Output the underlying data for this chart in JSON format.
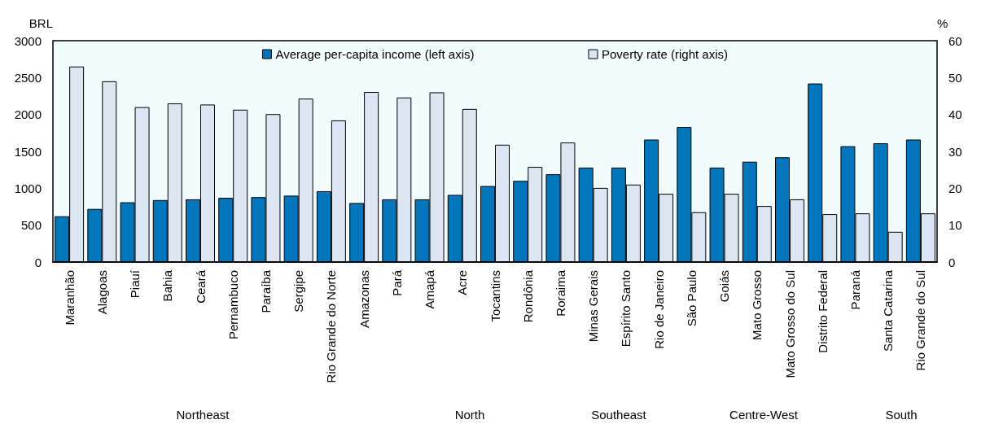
{
  "chart_data": {
    "type": "bar",
    "ylabel": "BRL",
    "y2label": "%",
    "categories": [
      "Maranhão",
      "Alagoas",
      "Piauí",
      "Bahia",
      "Ceará",
      "Pernambuco",
      "Paraíba",
      "Sergipe",
      "Rio Grande do Norte",
      "Amazonas",
      "Pará",
      "Amapá",
      "Acre",
      "Tocantins",
      "Rondônia",
      "Roraima",
      "Minas Gerais",
      "Espírito Santo",
      "Rio de Janeiro",
      "São Paulo",
      "Goiás",
      "Mato Grosso",
      "Mato Grosso do Sul",
      "Distrito Federal",
      "Paraná",
      "Santa Catarina",
      "Rio Grande do Sul"
    ],
    "series": [
      {
        "name": "Average per-capita income (left axis)",
        "color": "#0077bd",
        "values": [
          620,
          720,
          810,
          840,
          850,
          870,
          880,
          900,
          960,
          800,
          850,
          850,
          910,
          1030,
          1100,
          1190,
          1280,
          1280,
          1660,
          1830,
          1280,
          1360,
          1420,
          2420,
          1570,
          1610,
          1660
        ]
      },
      {
        "name": "Poverty rate (right axis)",
        "color": "#dce6f2",
        "axis": "y2",
        "values": [
          53,
          49,
          42,
          43,
          42.7,
          41.3,
          40.1,
          44.3,
          38.4,
          46.1,
          44.6,
          46,
          41.5,
          31.8,
          25.8,
          32.4,
          20.1,
          21,
          18.5,
          13.5,
          18.5,
          15.2,
          17,
          13,
          13.2,
          8.2,
          13.2
        ]
      }
    ],
    "ylim": [
      0,
      3000
    ],
    "yticks": [
      0,
      500,
      1000,
      1500,
      2000,
      2500,
      3000
    ],
    "y2lim": [
      0,
      60
    ],
    "y2ticks": [
      0,
      10,
      20,
      30,
      40,
      50,
      60
    ],
    "legend": "top",
    "grid": false,
    "annotations": [
      "Northeast",
      "North",
      "Southeast",
      "Centre-West",
      "South"
    ]
  }
}
